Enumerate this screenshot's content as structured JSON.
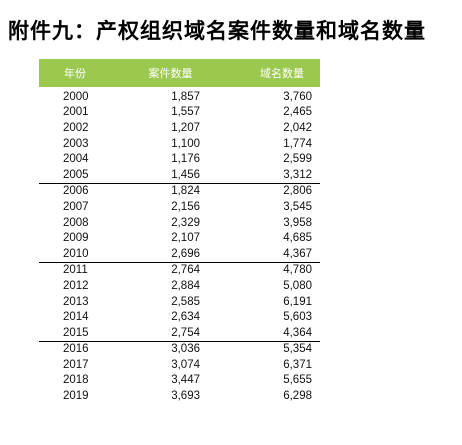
{
  "title": "附件九：产权组织域名案件数量和域名数量",
  "table": {
    "headers": {
      "year": "年份",
      "cases": "案件数量",
      "domains": "域名数量"
    },
    "groups": [
      [
        {
          "year": "2000",
          "cases": "1,857",
          "domains": "3,760"
        },
        {
          "year": "2001",
          "cases": "1,557",
          "domains": "2,465"
        },
        {
          "year": "2002",
          "cases": "1,207",
          "domains": "2,042"
        },
        {
          "year": "2003",
          "cases": "1,100",
          "domains": "1,774"
        },
        {
          "year": "2004",
          "cases": "1,176",
          "domains": "2,599"
        },
        {
          "year": "2005",
          "cases": "1,456",
          "domains": "3,312"
        }
      ],
      [
        {
          "year": "2006",
          "cases": "1,824",
          "domains": "2,806"
        },
        {
          "year": "2007",
          "cases": "2,156",
          "domains": "3,545"
        },
        {
          "year": "2008",
          "cases": "2,329",
          "domains": "3,958"
        },
        {
          "year": "2009",
          "cases": "2,107",
          "domains": "4,685"
        },
        {
          "year": "2010",
          "cases": "2,696",
          "domains": "4,367"
        }
      ],
      [
        {
          "year": "2011",
          "cases": "2,764",
          "domains": "4,780"
        },
        {
          "year": "2012",
          "cases": "2,884",
          "domains": "5,080"
        },
        {
          "year": "2013",
          "cases": "2,585",
          "domains": "6,191"
        },
        {
          "year": "2014",
          "cases": "2,634",
          "domains": "5,603"
        },
        {
          "year": "2015",
          "cases": "2,754",
          "domains": "4,364"
        }
      ],
      [
        {
          "year": "2016",
          "cases": "3,036",
          "domains": "5,354"
        },
        {
          "year": "2017",
          "cases": "3,074",
          "domains": "6,371"
        },
        {
          "year": "2018",
          "cases": "3,447",
          "domains": "5,655"
        },
        {
          "year": "2019",
          "cases": "3,693",
          "domains": "6,298"
        }
      ]
    ]
  },
  "colors": {
    "header_background": "#9bc94f",
    "header_text": "#ffffff",
    "separator": "#000000"
  }
}
